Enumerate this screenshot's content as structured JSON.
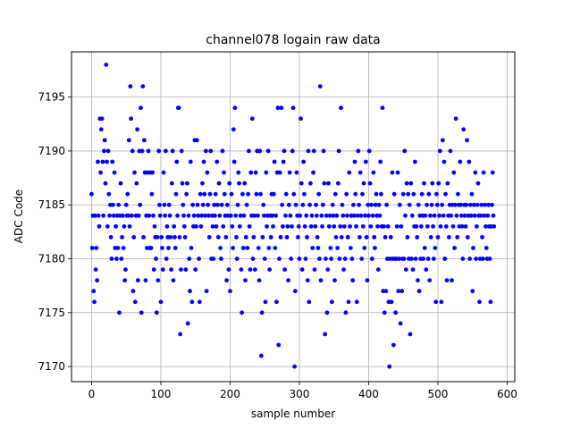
{
  "chart_data": {
    "type": "scatter",
    "title": "channel078 logain raw data",
    "xlabel": "sample number",
    "ylabel": "ADC Code",
    "color": "blue",
    "grid": true,
    "xlim": [
      -29,
      611
    ],
    "ylim": [
      7168.6,
      7199.2
    ],
    "xticks": [
      0,
      100,
      200,
      300,
      400,
      500,
      600
    ],
    "yticks": [
      7170,
      7175,
      7180,
      7185,
      7190,
      7195
    ],
    "x": [
      0,
      1,
      2,
      3,
      4,
      5,
      6,
      7,
      8,
      9,
      10,
      11,
      12,
      13,
      14,
      15,
      16,
      17,
      18,
      19,
      20,
      21,
      22,
      23,
      24,
      25,
      26,
      27,
      28,
      29,
      30,
      31,
      32,
      33,
      34,
      35,
      36,
      37,
      38,
      39,
      40,
      41,
      42,
      43,
      44,
      45,
      46,
      47,
      48,
      49,
      50,
      51,
      52,
      53,
      54,
      55,
      56,
      57,
      58,
      59,
      60,
      61,
      62,
      63,
      64,
      65,
      66,
      67,
      68,
      69,
      70,
      71,
      72,
      73,
      74,
      75,
      76,
      77,
      78,
      79,
      80,
      81,
      82,
      83,
      84,
      85,
      86,
      87,
      88,
      89,
      90,
      91,
      92,
      93,
      94,
      95,
      96,
      97,
      98,
      99,
      100,
      101,
      102,
      103,
      104,
      105,
      106,
      107,
      108,
      109,
      110,
      111,
      112,
      113,
      114,
      115,
      116,
      117,
      118,
      119,
      120,
      121,
      122,
      123,
      124,
      125,
      126,
      127,
      128,
      129,
      130,
      131,
      132,
      133,
      134,
      135,
      136,
      137,
      138,
      139,
      140,
      141,
      142,
      143,
      144,
      145,
      146,
      147,
      148,
      149,
      150,
      151,
      152,
      153,
      154,
      155,
      156,
      157,
      158,
      159,
      160,
      161,
      162,
      163,
      164,
      165,
      166,
      167,
      168,
      169,
      170,
      171,
      172,
      173,
      174,
      175,
      176,
      177,
      178,
      179,
      180,
      181,
      182,
      183,
      184,
      185,
      186,
      187,
      188,
      189,
      190,
      191,
      192,
      193,
      194,
      195,
      196,
      197,
      198,
      199,
      200,
      201,
      202,
      203,
      204,
      205,
      206,
      207,
      208,
      209,
      210,
      211,
      212,
      213,
      214,
      215,
      216,
      217,
      218,
      219,
      220,
      221,
      222,
      223,
      224,
      225,
      226,
      227,
      228,
      229,
      230,
      231,
      232,
      233,
      234,
      235,
      236,
      237,
      238,
      239,
      240,
      241,
      242,
      243,
      244,
      245,
      246,
      247,
      248,
      249,
      250,
      251,
      252,
      253,
      254,
      255,
      256,
      257,
      258,
      259,
      260,
      261,
      262,
      263,
      264,
      265,
      266,
      267,
      268,
      269,
      270,
      271,
      272,
      273,
      274,
      275,
      276,
      277,
      278,
      279,
      280,
      281,
      282,
      283,
      284,
      285,
      286,
      287,
      288,
      289,
      290,
      291,
      292,
      293,
      294,
      295,
      296,
      297,
      298,
      299,
      300,
      301,
      302,
      303,
      304,
      305,
      306,
      307,
      308,
      309,
      310,
      311,
      312,
      313,
      314,
      315,
      316,
      317,
      318,
      319,
      320,
      321,
      322,
      323,
      324,
      325,
      326,
      327,
      328,
      329,
      330,
      331,
      332,
      333,
      334,
      335,
      336,
      337,
      338,
      339,
      340,
      341,
      342,
      343,
      344,
      345,
      346,
      347,
      348,
      349,
      350,
      351,
      352,
      353,
      354,
      355,
      356,
      357,
      358,
      359,
      360,
      361,
      362,
      363,
      364,
      365,
      366,
      367,
      368,
      369,
      370,
      371,
      372,
      373,
      374,
      375,
      376,
      377,
      378,
      379,
      380,
      381,
      382,
      383,
      384,
      385,
      386,
      387,
      388,
      389,
      390,
      391,
      392,
      393,
      394,
      395,
      396,
      397,
      398,
      399,
      400,
      401,
      402,
      403,
      404,
      405,
      406,
      407,
      408,
      409,
      410,
      411,
      412,
      413,
      414,
      415,
      416,
      417,
      418,
      419,
      420,
      421,
      422,
      423,
      424,
      425,
      426,
      427,
      428,
      429,
      430,
      431,
      432,
      433,
      434,
      435,
      436,
      437,
      438,
      439,
      440,
      441,
      442,
      443,
      444,
      445,
      446,
      447,
      448,
      449,
      450,
      451,
      452,
      453,
      454,
      455,
      456,
      457,
      458,
      459,
      460,
      461,
      462,
      463,
      464,
      465,
      466,
      467,
      468,
      469,
      470,
      471,
      472,
      473,
      474,
      475,
      476,
      477,
      478,
      479,
      480,
      481,
      482,
      483,
      484,
      485,
      486,
      487,
      488,
      489,
      490,
      491,
      492,
      493,
      494,
      495,
      496,
      497,
      498,
      499,
      500,
      501,
      502,
      503,
      504,
      505,
      506,
      507,
      508,
      509,
      510,
      511,
      512,
      513,
      514,
      515,
      516,
      517,
      518,
      519,
      520,
      521,
      522,
      523,
      524,
      525,
      526,
      527,
      528,
      529,
      530,
      531,
      532,
      533,
      534,
      535,
      536,
      537,
      538,
      539,
      540,
      541,
      542,
      543,
      544,
      545,
      546,
      547,
      548,
      549,
      550,
      551,
      552,
      553,
      554,
      555,
      556,
      557,
      558,
      559,
      560,
      561,
      562,
      563,
      564,
      565,
      566,
      567,
      568,
      569,
      570,
      571,
      572,
      573,
      574,
      575,
      576,
      577,
      578,
      579,
      580,
      581
    ],
    "values": [
      7186,
      7181,
      7184,
      7177,
      7176,
      7184,
      7179,
      7181,
      7178,
      7189,
      7184,
      7183,
      7193,
      7188,
      7192,
      7193,
      7189,
      7184,
      7190,
      7191,
      7187,
      7198,
      7189,
      7183,
      7190,
      7186,
      7184,
      7185,
      7182,
      7180,
      7189,
      7185,
      7184,
      7188,
      7181,
      7183,
      7180,
      7184,
      7181,
      7185,
      7175,
      7184,
      7187,
      7180,
      7182,
      7184,
      7181,
      7183,
      7178,
      7179,
      7185,
      7184,
      7186,
      7184,
      7191,
      7183,
      7196,
      7193,
      7184,
      7190,
      7177,
      7182,
      7188,
      7176,
      7184,
      7187,
      7192,
      7178,
      7184,
      7190,
      7185,
      7194,
      7175,
      7190,
      7196,
      7182,
      7191,
      7188,
      7178,
      7184,
      7181,
      7188,
      7190,
      7184,
      7181,
      7188,
      7181,
      7186,
      7188,
      7184,
      7179,
      7183,
      7182,
      7180,
      7175,
      7182,
      7178,
      7190,
      7185,
      7184,
      7176,
      7182,
      7181,
      7179,
      7188,
      7185,
      7184,
      7190,
      7180,
      7183,
      7182,
      7181,
      7185,
      7184,
      7182,
      7179,
      7187,
      7190,
      7178,
      7183,
      7182,
      7181,
      7186,
      7189,
      7184,
      7194,
      7194,
      7182,
      7173,
      7179,
      7190,
      7187,
      7185,
      7184,
      7183,
      7182,
      7179,
      7186,
      7187,
      7174,
      7184,
      7180,
      7177,
      7189,
      7181,
      7176,
      7185,
      7183,
      7184,
      7191,
      7179,
      7183,
      7191,
      7185,
      7184,
      7180,
      7176,
      7186,
      7183,
      7184,
      7187,
      7185,
      7189,
      7186,
      7184,
      7190,
      7177,
      7188,
      7185,
      7184,
      7182,
      7186,
      7190,
      7180,
      7184,
      7183,
      7180,
      7185,
      7184,
      7186,
      7183,
      7189,
      7185,
      7182,
      7187,
      7184,
      7181,
      7180,
      7185,
      7190,
      7183,
      7188,
      7186,
      7184,
      7182,
      7178,
      7185,
      7184,
      7179,
      7187,
      7177,
      7184,
      7186,
      7183,
      7181,
      7192,
      7189,
      7194,
      7184,
      7182,
      7180,
      7185,
      7188,
      7187,
      7183,
      7184,
      7179,
      7175,
      7186,
      7181,
      7184,
      7187,
      7178,
      7182,
      7185,
      7181,
      7186,
      7190,
      7183,
      7179,
      7188,
      7184,
      7193,
      7180,
      7182,
      7184,
      7179,
      7188,
      7186,
      7190,
      7184,
      7181,
      7178,
      7190,
      7186,
      7171,
      7175,
      7182,
      7185,
      7184,
      7180,
      7176,
      7188,
      7183,
      7184,
      7190,
      7181,
      7179,
      7184,
      7182,
      7186,
      7184,
      7183,
      7186,
      7189,
      7181,
      7184,
      7176,
      7188,
      7194,
      7172,
      7180,
      7188,
      7182,
      7194,
      7185,
      7183,
      7189,
      7190,
      7179,
      7184,
      7186,
      7182,
      7183,
      7178,
      7185,
      7188,
      7184,
      7180,
      7183,
      7190,
      7194,
      7186,
      7170,
      7177,
      7185,
      7188,
      7184,
      7182,
      7183,
      7180,
      7184,
      7193,
      7187,
      7179,
      7185,
      7189,
      7186,
      7183,
      7180,
      7184,
      7182,
      7178,
      7190,
      7176,
      7185,
      7187,
      7183,
      7184,
      7181,
      7188,
      7190,
      7179,
      7183,
      7185,
      7184,
      7182,
      7181,
      7186,
      7180,
      7196,
      7178,
      7184,
      7183,
      7185,
      7190,
      7187,
      7173,
      7180,
      7184,
      7175,
      7179,
      7187,
      7183,
      7184,
      7181,
      7180,
      7176,
      7185,
      7184,
      7183,
      7178,
      7186,
      7182,
      7184,
      7181,
      7187,
      7190,
      7180,
      7183,
      7194,
      7182,
      7185,
      7184,
      7179,
      7183,
      7180,
      7175,
      7186,
      7184,
      7182,
      7176,
      7188,
      7183,
      7181,
      7184,
      7180,
      7178,
      7185,
      7184,
      7189,
      7186,
      7183,
      7176,
      7184,
      7190,
      7185,
      7182,
      7188,
      7184,
      7180,
      7186,
      7183,
      7187,
      7181,
      7184,
      7189,
      7182,
      7178,
      7185,
      7184,
      7190,
      7187,
      7183,
      7185,
      7180,
      7184,
      7188,
      7182,
      7181,
      7185,
      7186,
      7184,
      7183,
      7179,
      7185,
      7184,
      7189,
      7186,
      7183,
      7194,
      7177,
      7183,
      7175,
      7182,
      7177,
      7185,
      7180,
      7183,
      7176,
      7170,
      7180,
      7182,
      7176,
      7188,
      7180,
      7172,
      7186,
      7180,
      7175,
      7180,
      7183,
      7188,
      7177,
      7180,
      7185,
      7174,
      7183,
      7177,
      7180,
      7186,
      7180,
      7190,
      7184,
      7179,
      7187,
      7182,
      7186,
      7180,
      7185,
      7173,
      7187,
      7180,
      7184,
      7179,
      7186,
      7183,
      7189,
      7180,
      7183,
      7182,
      7178,
      7185,
      7177,
      7184,
      7180,
      7183,
      7186,
      7184,
      7180,
      7187,
      7181,
      7184,
      7179,
      7185,
      7183,
      7180,
      7186,
      7178,
      7184,
      7182,
      7185,
      7187,
      7183,
      7180,
      7184,
      7181,
      7176,
      7186,
      7185,
      7182,
      7187,
      7184,
      7190,
      7183,
      7176,
      7185,
      7191,
      7184,
      7189,
      7180,
      7186,
      7183,
      7178,
      7187,
      7184,
      7182,
      7185,
      7190,
      7184,
      7178,
      7185,
      7183,
      7188,
      7181,
      7185,
      7193,
      7184,
      7182,
      7186,
      7185,
      7183,
      7189,
      7185,
      7184,
      7183,
      7180,
      7192,
      7185,
      7184,
      7183,
      7185,
      7191,
      7182,
      7184,
      7189,
      7180,
      7185,
      7184,
      7186,
      7177,
      7181,
      7185,
      7184,
      7188,
      7180,
      7183,
      7185,
      7187,
      7184,
      7176,
      7180,
      7184,
      7185,
      7182,
      7180,
      7188,
      7184,
      7185,
      7183,
      7181,
      7180,
      7184,
      7185,
      7183,
      7180,
      7176,
      7183,
      7185,
      7188,
      7184,
      7183
    ]
  }
}
